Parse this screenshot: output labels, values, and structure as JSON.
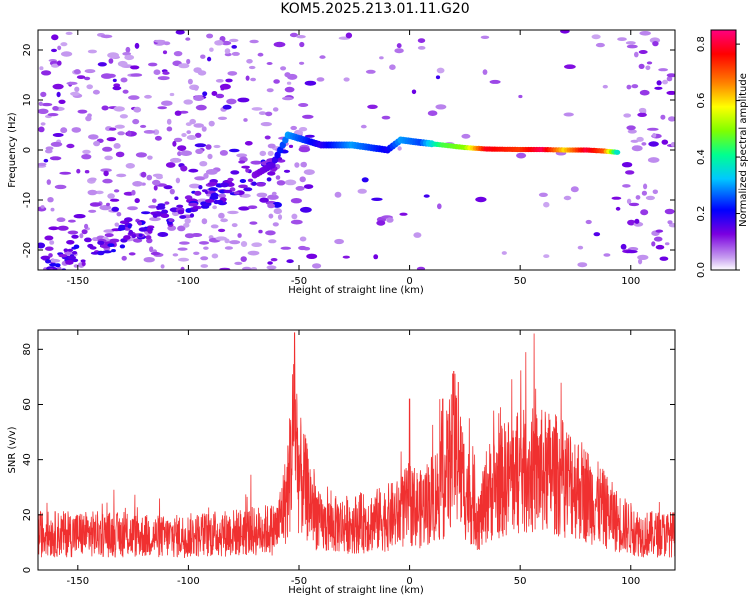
{
  "title": "KOM5.2025.213.01.11.G20",
  "colors": {
    "snr_line": "#f03030",
    "axis": "#000000"
  },
  "chart_data": [
    {
      "type": "heatmap",
      "xlabel": "Height of straight line (km)",
      "ylabel": "Frequency (Hz)",
      "xlim": [
        -168,
        120
      ],
      "ylim": [
        -24,
        24
      ],
      "xticks": [
        -150,
        -100,
        -50,
        0,
        50,
        100
      ],
      "yticks": [
        -20,
        -10,
        0,
        10,
        20
      ],
      "colorbar": {
        "label": "Normalized spectral amplitude",
        "range": [
          0,
          0.85
        ],
        "ticks": [
          0.0,
          0.2,
          0.4,
          0.6,
          0.8
        ]
      },
      "ridge": [
        {
          "x": -70,
          "y": -5,
          "v": 0.12
        },
        {
          "x": -62,
          "y": -3,
          "v": 0.15
        },
        {
          "x": -55,
          "y": 3,
          "v": 0.3
        },
        {
          "x": -40,
          "y": 1,
          "v": 0.18
        },
        {
          "x": -26,
          "y": 1,
          "v": 0.3
        },
        {
          "x": -10,
          "y": 0,
          "v": 0.2
        },
        {
          "x": -4,
          "y": 2,
          "v": 0.3
        },
        {
          "x": 5,
          "y": 1.5,
          "v": 0.25
        },
        {
          "x": 15,
          "y": 1,
          "v": 0.45
        },
        {
          "x": 25,
          "y": 0.5,
          "v": 0.5
        },
        {
          "x": 35,
          "y": 0.2,
          "v": 0.78
        },
        {
          "x": 50,
          "y": 0.1,
          "v": 0.72
        },
        {
          "x": 60,
          "y": 0.1,
          "v": 0.82
        },
        {
          "x": 70,
          "y": 0,
          "v": 0.6
        },
        {
          "x": 80,
          "y": 0,
          "v": 0.8
        },
        {
          "x": 88,
          "y": -0.2,
          "v": 0.7
        },
        {
          "x": 95,
          "y": -0.5,
          "v": 0.3
        }
      ]
    },
    {
      "type": "line",
      "xlabel": "Height of straight line (km)",
      "ylabel": "SNR (v/v)",
      "xlim": [
        -168,
        120
      ],
      "ylim": [
        0,
        87
      ],
      "xticks": [
        -150,
        -100,
        -50,
        0,
        50,
        100
      ],
      "yticks": [
        0,
        20,
        40,
        60,
        80
      ],
      "envelope": [
        {
          "x": -168,
          "y": 13
        },
        {
          "x": -140,
          "y": 13
        },
        {
          "x": -110,
          "y": 12
        },
        {
          "x": -90,
          "y": 13
        },
        {
          "x": -70,
          "y": 14
        },
        {
          "x": -60,
          "y": 15
        },
        {
          "x": -55,
          "y": 28
        },
        {
          "x": -52,
          "y": 55
        },
        {
          "x": -50,
          "y": 35
        },
        {
          "x": -40,
          "y": 16
        },
        {
          "x": -20,
          "y": 17
        },
        {
          "x": -5,
          "y": 20
        },
        {
          "x": 0,
          "y": 24
        },
        {
          "x": 5,
          "y": 22
        },
        {
          "x": 15,
          "y": 30
        },
        {
          "x": 20,
          "y": 45
        },
        {
          "x": 25,
          "y": 30
        },
        {
          "x": 32,
          "y": 18
        },
        {
          "x": 35,
          "y": 28
        },
        {
          "x": 45,
          "y": 34
        },
        {
          "x": 55,
          "y": 36
        },
        {
          "x": 65,
          "y": 35
        },
        {
          "x": 75,
          "y": 31
        },
        {
          "x": 85,
          "y": 24
        },
        {
          "x": 95,
          "y": 17
        },
        {
          "x": 105,
          "y": 13
        },
        {
          "x": 120,
          "y": 13
        }
      ],
      "peaks": [
        {
          "x": -52,
          "y": 86
        },
        {
          "x": 20,
          "y": 72
        },
        {
          "x": 22,
          "y": 68
        },
        {
          "x": 15,
          "y": 62
        },
        {
          "x": 0,
          "y": 62
        },
        {
          "x": -55,
          "y": 45
        }
      ]
    }
  ]
}
